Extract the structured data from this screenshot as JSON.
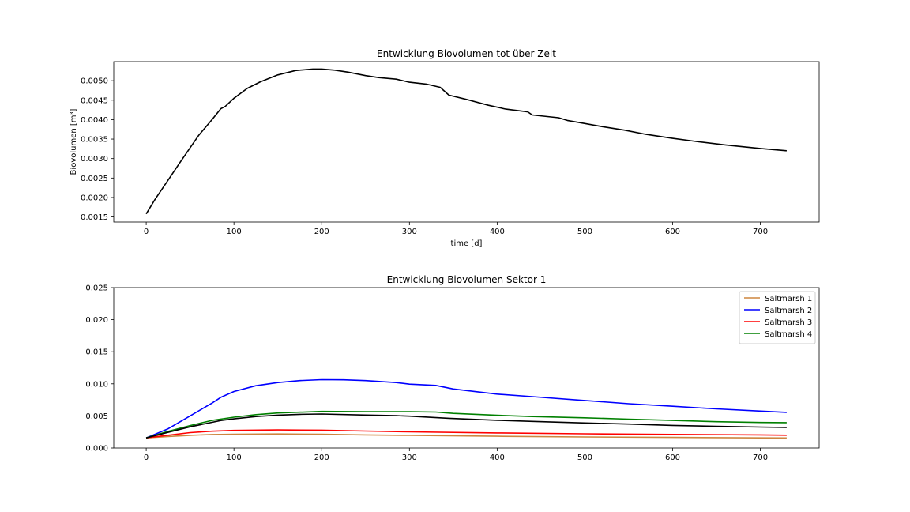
{
  "chart_data": [
    {
      "type": "line",
      "title": "Entwicklung Biovolumen tot über Zeit",
      "xlabel": "time [d]",
      "ylabel": "Biovolumen [m³]",
      "xlim": [
        -37,
        767
      ],
      "ylim": [
        0.00137,
        0.00549
      ],
      "xticks": [
        0,
        100,
        200,
        300,
        400,
        500,
        600,
        700
      ],
      "xtick_labels": [
        "0",
        "100",
        "200",
        "300",
        "400",
        "500",
        "600",
        "700"
      ],
      "yticks": [
        0.0015,
        0.002,
        0.0025,
        0.003,
        0.0035,
        0.004,
        0.0045,
        0.005
      ],
      "ytick_labels": [
        "0.0015",
        "0.0020",
        "0.0025",
        "0.0030",
        "0.0035",
        "0.0040",
        "0.0045",
        "0.0050"
      ],
      "grid": false,
      "series": [
        {
          "color": "#000000",
          "x": [
            0,
            10,
            25,
            40,
            60,
            75,
            85,
            90,
            100,
            115,
            130,
            150,
            170,
            190,
            200,
            215,
            230,
            250,
            265,
            285,
            300,
            320,
            335,
            345,
            365,
            390,
            410,
            435,
            440,
            470,
            480,
            500,
            520,
            545,
            570,
            600,
            630,
            660,
            700,
            730
          ],
          "y": [
            0.00158,
            0.00195,
            0.00245,
            0.00295,
            0.0036,
            0.004,
            0.00428,
            0.00434,
            0.00455,
            0.0048,
            0.00497,
            0.00515,
            0.00526,
            0.0053,
            0.0053,
            0.00527,
            0.00522,
            0.00513,
            0.00508,
            0.00504,
            0.00496,
            0.00491,
            0.00483,
            0.00463,
            0.00452,
            0.00437,
            0.00427,
            0.0042,
            0.00412,
            0.00405,
            0.00398,
            0.0039,
            0.00382,
            0.00373,
            0.00362,
            0.00352,
            0.00343,
            0.00335,
            0.00326,
            0.0032
          ]
        }
      ]
    },
    {
      "type": "line",
      "title": "Entwicklung Biovolumen Sektor 1",
      "xlabel": "",
      "ylabel": "",
      "xlim": [
        -37,
        767
      ],
      "ylim": [
        0,
        0.025
      ],
      "xticks": [
        0,
        100,
        200,
        300,
        400,
        500,
        600,
        700
      ],
      "xtick_labels": [
        "0",
        "100",
        "200",
        "300",
        "400",
        "500",
        "600",
        "700"
      ],
      "yticks": [
        0,
        0.005,
        0.01,
        0.015,
        0.02,
        0.025
      ],
      "ytick_labels": [
        "0.000",
        "0.005",
        "0.010",
        "0.015",
        "0.020",
        "0.025"
      ],
      "grid": false,
      "legend": "top-right",
      "series": [
        {
          "name": "Saltmarsh 1",
          "color": "#cd853f",
          "x": [
            0,
            25,
            50,
            75,
            100,
            150,
            200,
            250,
            300,
            400,
            500,
            600,
            700,
            730
          ],
          "y": [
            0.00158,
            0.0018,
            0.00198,
            0.0021,
            0.00216,
            0.00219,
            0.00214,
            0.00205,
            0.00197,
            0.00183,
            0.00173,
            0.00165,
            0.00158,
            0.00157
          ]
        },
        {
          "name": "Saltmarsh 2",
          "color": "#0000ff",
          "x": [
            0,
            25,
            50,
            75,
            85,
            100,
            125,
            150,
            175,
            200,
            225,
            250,
            285,
            300,
            330,
            350,
            400,
            440,
            500,
            550,
            600,
            650,
            700,
            730
          ],
          "y": [
            0.00158,
            0.003,
            0.005,
            0.007,
            0.0079,
            0.0088,
            0.0097,
            0.0102,
            0.0105,
            0.01065,
            0.01063,
            0.0105,
            0.0102,
            0.00995,
            0.00975,
            0.0092,
            0.0084,
            0.008,
            0.0074,
            0.0069,
            0.0065,
            0.0061,
            0.00575,
            0.00555
          ]
        },
        {
          "name": "Saltmarsh 3",
          "color": "#ff0000",
          "x": [
            0,
            25,
            50,
            75,
            100,
            150,
            200,
            250,
            300,
            400,
            500,
            600,
            700,
            730
          ],
          "y": [
            0.00158,
            0.002,
            0.0024,
            0.00262,
            0.00275,
            0.00282,
            0.00278,
            0.00265,
            0.00252,
            0.00235,
            0.00222,
            0.00212,
            0.00204,
            0.002
          ]
        },
        {
          "name": "Saltmarsh 4",
          "color": "#008000",
          "x": [
            0,
            25,
            50,
            75,
            100,
            125,
            150,
            200,
            250,
            300,
            330,
            350,
            400,
            440,
            500,
            550,
            600,
            650,
            700,
            730
          ],
          "y": [
            0.00158,
            0.0026,
            0.0035,
            0.0043,
            0.0048,
            0.0052,
            0.00545,
            0.0057,
            0.00565,
            0.00565,
            0.0056,
            0.0054,
            0.0051,
            0.0049,
            0.0047,
            0.0045,
            0.0043,
            0.0041,
            0.00398,
            0.00395
          ]
        },
        {
          "color": "#000000",
          "x": [
            0,
            25,
            50,
            75,
            85,
            100,
            125,
            150,
            175,
            200,
            250,
            285,
            300,
            345,
            400,
            440,
            500,
            550,
            600,
            650,
            700,
            730
          ],
          "y": [
            0.00158,
            0.00245,
            0.0033,
            0.004,
            0.00428,
            0.00455,
            0.0049,
            0.00512,
            0.00525,
            0.0053,
            0.00513,
            0.00504,
            0.00496,
            0.00463,
            0.00432,
            0.00415,
            0.0039,
            0.00373,
            0.00352,
            0.00338,
            0.00326,
            0.0032
          ]
        }
      ]
    }
  ]
}
